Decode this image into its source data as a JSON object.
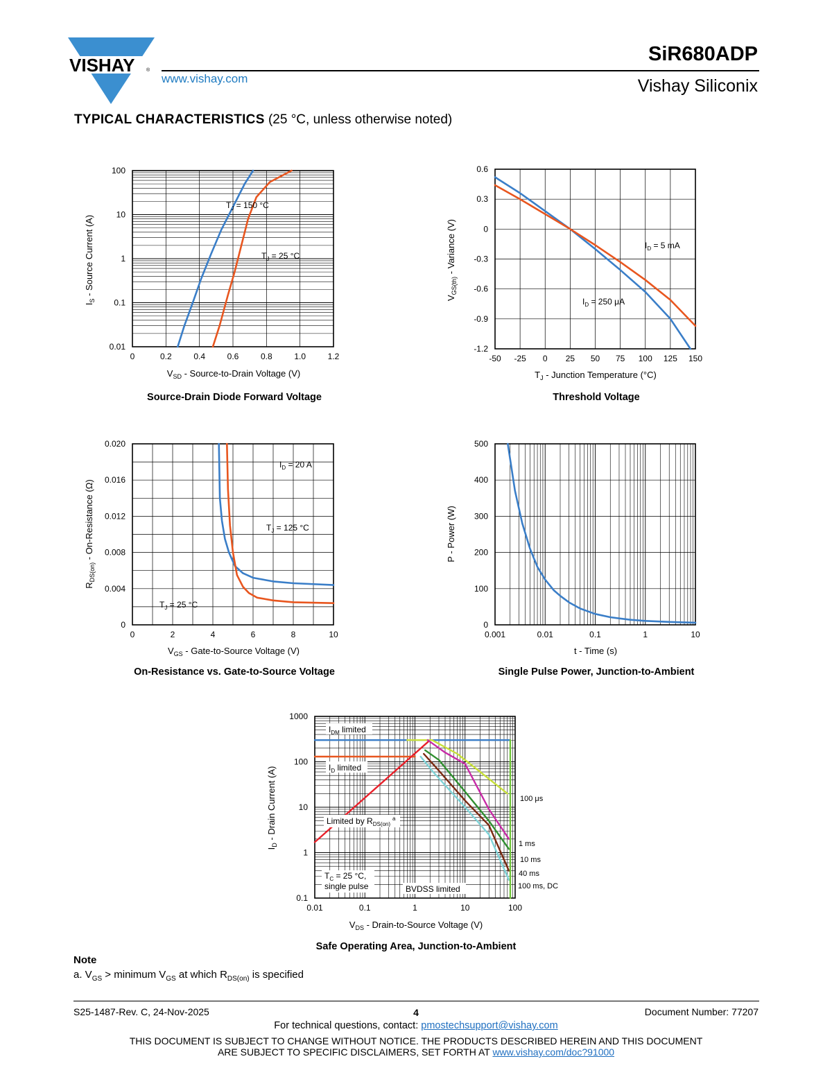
{
  "header": {
    "brand": "VISHAY",
    "website": "www.vishay.com",
    "part_number": "SiR680ADP",
    "division": "Vishay Siliconix",
    "colors": {
      "logo_blue": "#3b8fd0",
      "link_blue": "#1f7bc1"
    }
  },
  "section": {
    "title_bold": "TYPICAL CHARACTERISTICS",
    "title_rest": " (25 °C, unless otherwise noted)"
  },
  "colors": {
    "blue": "#3a7ec8",
    "orange": "#e8561f",
    "red": "#e8202a",
    "dark_red": "#7a2a12",
    "green": "#2f8f2f",
    "dark_green": "#4a7a1e",
    "magenta": "#c72aa6",
    "yellow": "#c8e03a",
    "cyan": "#7fd4d8",
    "bright_green": "#6fc43a"
  },
  "charts": {
    "c1": {
      "caption": "Source-Drain Diode Forward Voltage",
      "ylabel_main": "I",
      "ylabel_sub": "S",
      "ylabel_rest": " - Source Current (A)",
      "xlabel_main": "V",
      "xlabel_sub": "SD",
      "xlabel_rest": " - Source-to-Drain Voltage (V)",
      "xticks": [
        "0",
        "0.2",
        "0.4",
        "0.6",
        "0.8",
        "1.0",
        "1.2"
      ],
      "yticks": [
        "0.01",
        "0.1",
        "1",
        "10",
        "100"
      ],
      "label_hot_main": "T",
      "label_hot_sub": "J",
      "label_hot_rest": " = 150 °C",
      "label_cold_main": "T",
      "label_cold_sub": "J",
      "label_cold_rest": " = 25 °C"
    },
    "c2": {
      "caption": "Threshold Voltage",
      "ylabel_main": "V",
      "ylabel_sub": "GS(th)",
      "ylabel_rest": " - Variance (V)",
      "xlabel_main": "T",
      "xlabel_sub": "J",
      "xlabel_rest": " - Junction Temperature (°C)",
      "xticks": [
        "-50",
        "-25",
        "0",
        "25",
        "50",
        "75",
        "100",
        "125",
        "150"
      ],
      "yticks": [
        "-1.2",
        "-0.9",
        "-0.6",
        "-0.3",
        "0",
        "0.3",
        "0.6"
      ],
      "label_5ma_main": "I",
      "label_5ma_sub": "D",
      "label_5ma_rest": " = 5 mA",
      "label_250_main": "I",
      "label_250_sub": "D",
      "label_250_rest": " = 250 μA"
    },
    "c3": {
      "caption": "On-Resistance vs. Gate-to-Source Voltage",
      "ylabel_main": "R",
      "ylabel_sub": "DS(on)",
      "ylabel_rest": " - On-Resistance (Ω)",
      "xlabel_main": "V",
      "xlabel_sub": "GS",
      "xlabel_rest": " - Gate-to-Source Voltage (V)",
      "xticks": [
        "0",
        "2",
        "4",
        "6",
        "8",
        "10"
      ],
      "yticks": [
        "0",
        "0.004",
        "0.008",
        "0.012",
        "0.016",
        "0.020"
      ],
      "label_id_main": "I",
      "label_id_sub": "D",
      "label_id_rest": " = 20 A",
      "label_125_main": "T",
      "label_125_sub": "J",
      "label_125_rest": " = 125 °C",
      "label_25_main": "T",
      "label_25_sub": "J",
      "label_25_rest": " = 25 °C"
    },
    "c4": {
      "caption": "Single Pulse Power, Junction-to-Ambient",
      "ylabel": "P - Power (W)",
      "xlabel": "t - Time (s)",
      "xticks": [
        "0.001",
        "0.01",
        "0.1",
        "1",
        "10"
      ],
      "yticks": [
        "0",
        "100",
        "200",
        "300",
        "400",
        "500"
      ]
    },
    "c5": {
      "caption": "Safe Operating Area, Junction-to-Ambient",
      "ylabel_main": "I",
      "ylabel_sub": "D",
      "ylabel_rest": " - Drain Current (A)",
      "xlabel_main": "V",
      "xlabel_sub": "DS",
      "xlabel_rest": " - Drain-to-Source Voltage (V)",
      "xticks": [
        "0.01",
        "0.1",
        "1",
        "10",
        "100"
      ],
      "yticks": [
        "0.1",
        "1",
        "10",
        "100",
        "1000"
      ],
      "idm_main": "I",
      "idm_sub": "DM",
      "idm_rest": " limited",
      "id_main": "I",
      "id_sub": "D",
      "id_rest": " limited",
      "rds_main": "Limited by R",
      "rds_sub": "DS(on)",
      "rds_sup": "a",
      "tc_main": "T",
      "tc_sub": "C",
      "tc_rest": " = 25 °C,",
      "tc_line2": "single pulse",
      "bvdss": "BVDSS limited",
      "pulse_labels": [
        "100 μs",
        "1 ms",
        "10 ms",
        "40 ms",
        "100 ms, DC"
      ]
    }
  },
  "chart_data": [
    {
      "type": "line",
      "title": "Source-Drain Diode Forward Voltage",
      "xlabel": "VSD - Source-to-Drain Voltage (V)",
      "ylabel": "IS - Source Current (A)",
      "xlim": [
        0,
        1.2
      ],
      "ylim": [
        0.01,
        100
      ],
      "y_scale": "log",
      "series": [
        {
          "name": "TJ = 150 °C",
          "x": [
            0.27,
            0.31,
            0.36,
            0.41,
            0.47,
            0.53,
            0.6,
            0.67,
            0.72
          ],
          "y": [
            0.01,
            0.03,
            0.1,
            0.35,
            1.3,
            4.5,
            15,
            50,
            100
          ]
        },
        {
          "name": "TJ = 25 °C",
          "x": [
            0.48,
            0.52,
            0.57,
            0.61,
            0.65,
            0.69,
            0.74,
            0.82,
            0.95
          ],
          "y": [
            0.01,
            0.03,
            0.15,
            0.5,
            2,
            8,
            25,
            55,
            100
          ]
        }
      ]
    },
    {
      "type": "line",
      "title": "Threshold Voltage",
      "xlabel": "TJ - Junction Temperature (°C)",
      "ylabel": "VGS(th) - Variance (V)",
      "xlim": [
        -50,
        150
      ],
      "ylim": [
        -1.2,
        0.6
      ],
      "series": [
        {
          "name": "ID = 250 μA",
          "x": [
            -50,
            -25,
            0,
            25,
            50,
            75,
            100,
            125,
            145
          ],
          "y": [
            0.52,
            0.36,
            0.18,
            0.0,
            -0.2,
            -0.41,
            -0.63,
            -0.9,
            -1.2
          ]
        },
        {
          "name": "ID = 5 mA",
          "x": [
            -50,
            -25,
            0,
            25,
            50,
            75,
            100,
            125,
            150
          ],
          "y": [
            0.44,
            0.3,
            0.15,
            0.0,
            -0.16,
            -0.33,
            -0.51,
            -0.71,
            -0.97
          ]
        }
      ]
    },
    {
      "type": "line",
      "title": "On-Resistance vs. Gate-to-Source Voltage",
      "xlabel": "VGS - Gate-to-Source Voltage (V)",
      "ylabel": "RDS(on) - On-Resistance (Ω)",
      "xlim": [
        0,
        10
      ],
      "ylim": [
        0,
        0.02
      ],
      "series": [
        {
          "name": "TJ = 125 °C",
          "x": [
            4.3,
            4.35,
            4.45,
            4.6,
            4.8,
            5.1,
            5.5,
            6,
            7,
            8,
            10
          ],
          "y": [
            0.02,
            0.014,
            0.0115,
            0.0095,
            0.008,
            0.0065,
            0.0057,
            0.0052,
            0.0048,
            0.0046,
            0.0044
          ]
        },
        {
          "name": "TJ = 25 °C",
          "x": [
            4.7,
            4.75,
            4.85,
            5.0,
            5.2,
            5.5,
            5.8,
            6.2,
            7,
            8,
            10
          ],
          "y": [
            0.02,
            0.015,
            0.011,
            0.008,
            0.0055,
            0.0042,
            0.0035,
            0.003,
            0.0027,
            0.0025,
            0.0024
          ]
        }
      ]
    },
    {
      "type": "line",
      "title": "Single Pulse Power, Junction-to-Ambient",
      "xlabel": "t - Time (s)",
      "ylabel": "P - Power (W)",
      "xlim": [
        0.001,
        10
      ],
      "ylim": [
        0,
        500
      ],
      "x_scale": "log",
      "series": [
        {
          "name": "",
          "x": [
            0.0018,
            0.0025,
            0.0035,
            0.005,
            0.007,
            0.01,
            0.015,
            0.02,
            0.03,
            0.05,
            0.1,
            0.2,
            0.5,
            1,
            3,
            10
          ],
          "y": [
            500,
            370,
            280,
            210,
            160,
            125,
            95,
            80,
            62,
            45,
            30,
            21,
            14,
            11,
            8,
            6
          ]
        }
      ]
    },
    {
      "type": "line",
      "title": "Safe Operating Area, Junction-to-Ambient",
      "xlabel": "VDS - Drain-to-Source Voltage (V)",
      "ylabel": "ID - Drain Current (A)",
      "xlim": [
        0.01,
        100
      ],
      "ylim": [
        0.1,
        1000
      ],
      "x_scale": "log",
      "y_scale": "log",
      "series": [
        {
          "name": "IDM limited",
          "x": [
            0.01,
            80
          ],
          "y": [
            300,
            300
          ]
        },
        {
          "name": "ID limited",
          "x": [
            0.01,
            1.0
          ],
          "y": [
            130,
            130
          ]
        },
        {
          "name": "Limited by RDS(on)",
          "x": [
            0.01,
            2.0
          ],
          "y": [
            1.7,
            300
          ]
        },
        {
          "name": "100 μs",
          "x": [
            0.7,
            2.2,
            7,
            20,
            70
          ],
          "y": [
            300,
            300,
            150,
            60,
            20
          ]
        },
        {
          "name": "1 ms",
          "x": [
            1.8,
            4,
            10,
            30,
            75
          ],
          "y": [
            300,
            160,
            90,
            9,
            2
          ]
        },
        {
          "name": "10 ms",
          "x": [
            1.6,
            3,
            10,
            30,
            75
          ],
          "y": [
            180,
            110,
            22,
            5,
            1.2
          ]
        },
        {
          "name": "40 ms",
          "x": [
            1.5,
            2.5,
            10,
            30,
            75
          ],
          "y": [
            150,
            80,
            14,
            4,
            0.4
          ]
        },
        {
          "name": "100 ms, DC",
          "x": [
            1.3,
            2.3,
            10,
            30,
            75
          ],
          "y": [
            130,
            60,
            10,
            2.5,
            0.25
          ]
        },
        {
          "name": "BVDSS limited",
          "x": [
            80,
            80
          ],
          "y": [
            0.1,
            300
          ]
        }
      ]
    }
  ],
  "note": {
    "title": "Note",
    "a_prefix": "a.  V",
    "a_sub1": "GS",
    "a_mid": " > minimum V",
    "a_sub2": "GS",
    "a_mid2": " at which R",
    "a_sub3": "DS(on)",
    "a_end": " is specified"
  },
  "footer": {
    "revision": "S25-1487-Rev. C, 24-Nov-2025",
    "page": "4",
    "doc_number": "Document Number: 77207",
    "tech_prefix": "For technical questions, contact: ",
    "tech_email": "pmostechsupport@vishay.com",
    "disclaimer_line1": "THIS DOCUMENT IS SUBJECT TO CHANGE WITHOUT NOTICE. THE PRODUCTS DESCRIBED HEREIN AND THIS DOCUMENT",
    "disclaimer_line2_prefix": "ARE SUBJECT TO SPECIFIC DISCLAIMERS, SET FORTH AT ",
    "disclaimer_link": "www.vishay.com/doc?91000"
  }
}
